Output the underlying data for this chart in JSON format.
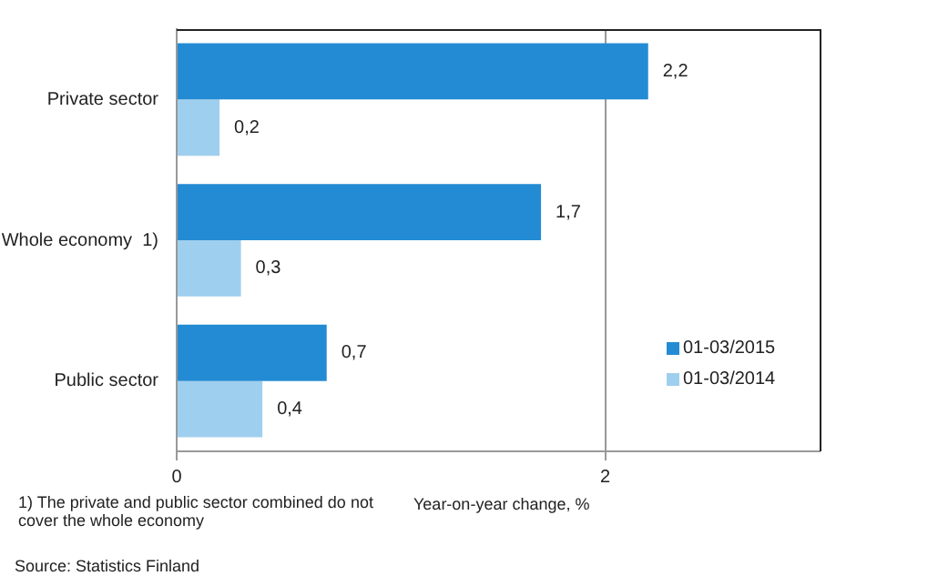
{
  "chart_data": {
    "type": "bar",
    "orientation": "horizontal",
    "categories": [
      "Private sector",
      "Whole economy  1)",
      "Public sector"
    ],
    "series": [
      {
        "name": "01-03/2015",
        "color": "#238bd3",
        "values": [
          2.2,
          1.7,
          0.7
        ],
        "value_labels": [
          "2,2",
          "1,7",
          "0,7"
        ]
      },
      {
        "name": "01-03/2014",
        "color": "#9fcfee",
        "values": [
          0.2,
          0.3,
          0.4
        ],
        "value_labels": [
          "0,2",
          "0,3",
          "0,4"
        ]
      }
    ],
    "xlim": [
      0,
      3
    ],
    "xticks": [
      0,
      2
    ],
    "grid": "x",
    "legend": "bottom right",
    "xlabel": "Year-on-year change, %",
    "annotations": [
      "1)  The private and public sector combined do not cover the whole economy",
      "Source: Statistics Finland"
    ]
  }
}
